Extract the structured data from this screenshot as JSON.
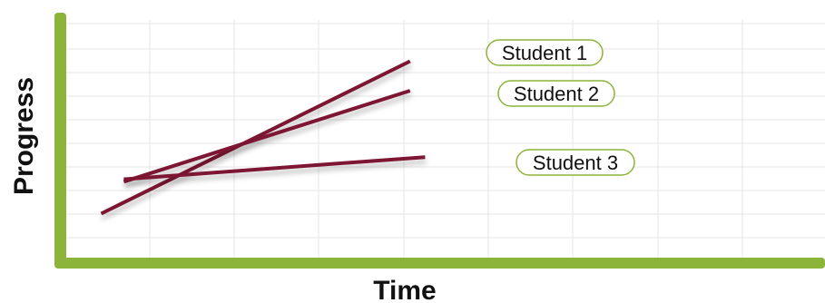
{
  "chart_data": {
    "type": "line",
    "xlabel": "Time",
    "ylabel": "Progress",
    "grid": true,
    "xlim": [
      0,
      10
    ],
    "ylim": [
      0,
      10
    ],
    "series": [
      {
        "name": "Student 1",
        "x": [
          0.5,
          4.6
        ],
        "y": [
          1.9,
          8.1
        ],
        "color": "#7b1230"
      },
      {
        "name": "Student 2",
        "x": [
          0.8,
          4.6
        ],
        "y": [
          3.2,
          6.9
        ],
        "color": "#7b1230"
      },
      {
        "name": "Student 3",
        "x": [
          0.8,
          4.8
        ],
        "y": [
          3.3,
          4.2
        ],
        "color": "#7b1230"
      }
    ]
  },
  "colors": {
    "axis": "#8cb33a",
    "grid": "#e6e6e6",
    "line": "#7b1230",
    "legend_border": "#8cb33a"
  }
}
